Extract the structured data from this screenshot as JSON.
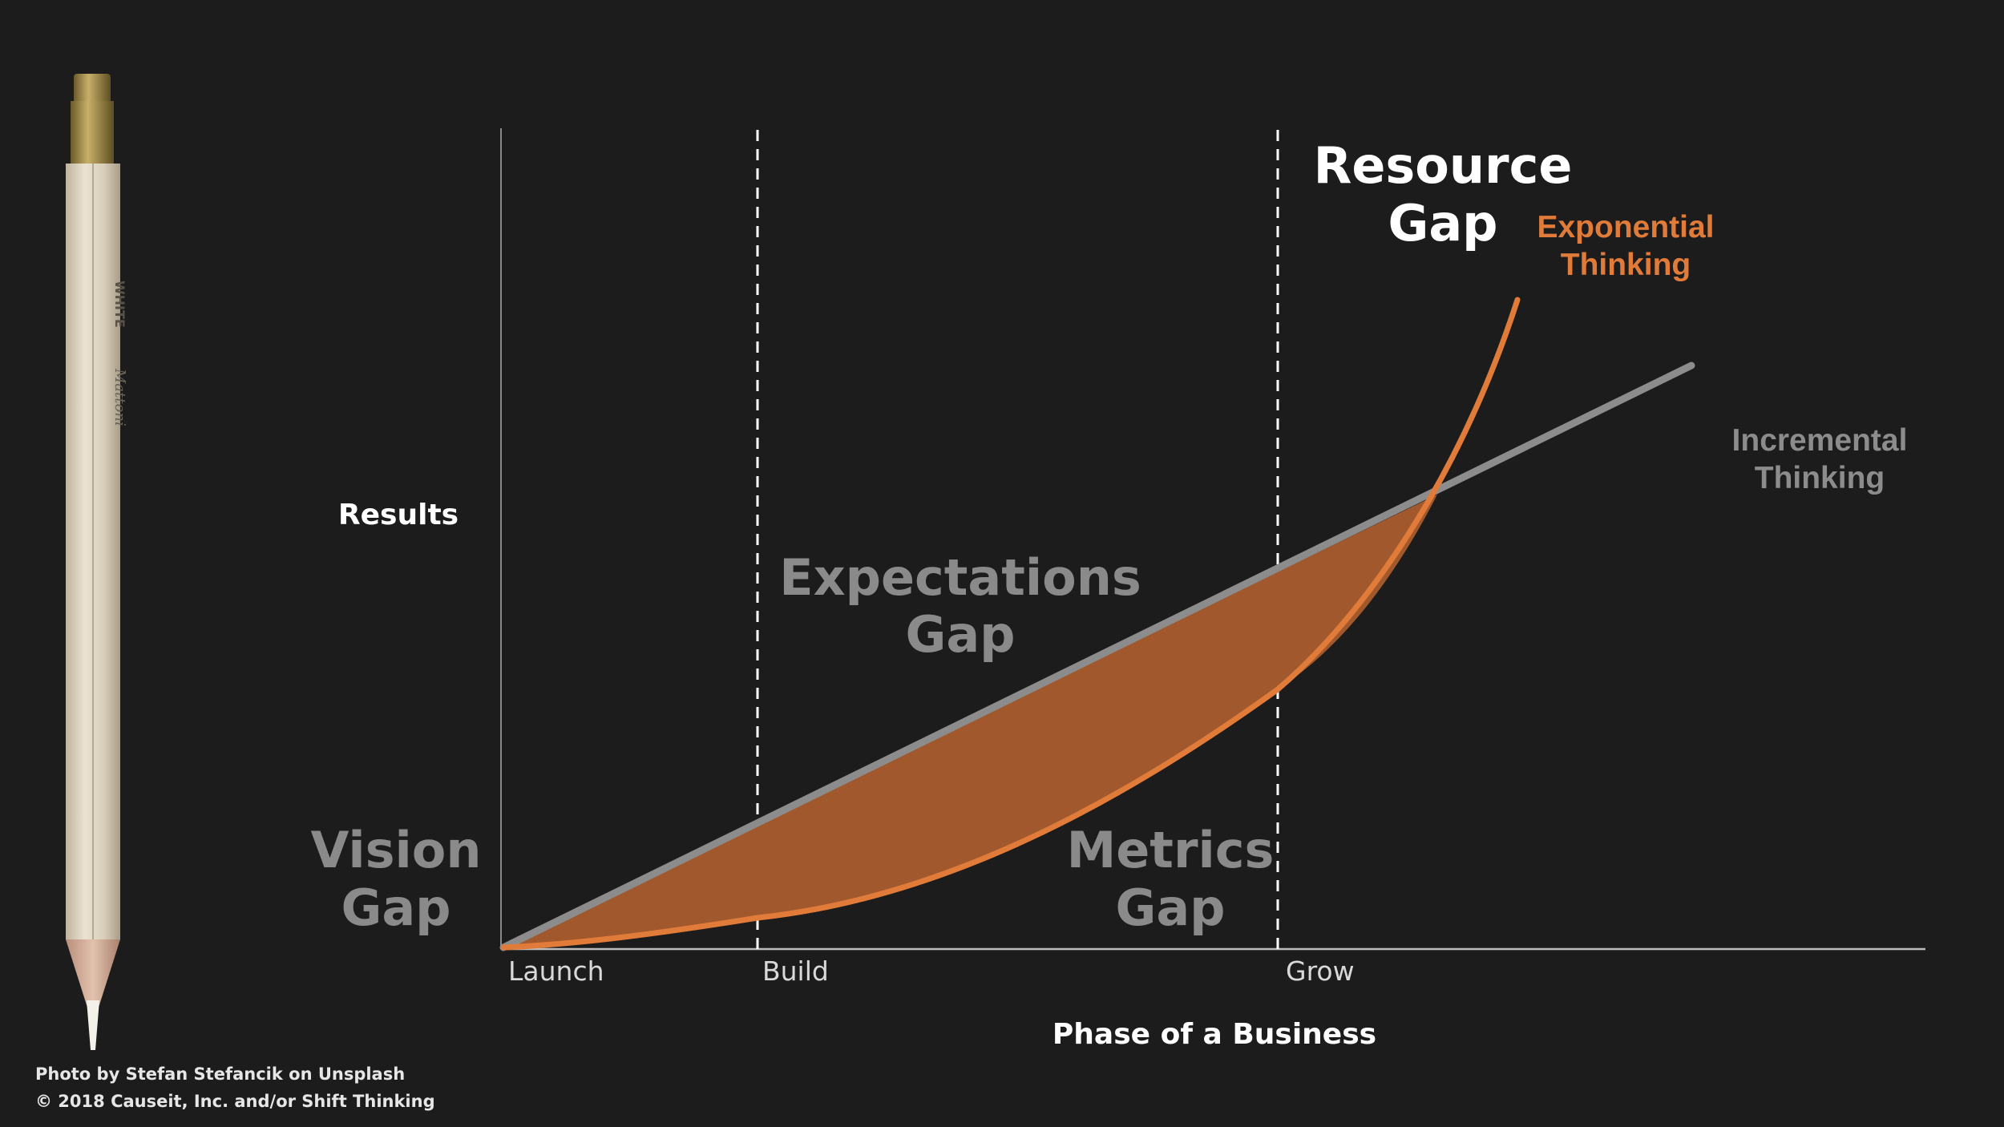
{
  "diagram": {
    "y_axis_label": "Results",
    "x_axis_label": "Phase of a Business",
    "phases": [
      "Launch",
      "Build",
      "Grow"
    ],
    "gaps": {
      "vision": [
        "Vision",
        "Gap"
      ],
      "expectations": [
        "Expectations",
        "Gap"
      ],
      "metrics": [
        "Metrics",
        "Gap"
      ],
      "resource": [
        "Resource",
        "Gap"
      ]
    },
    "curves": {
      "exponential": [
        "Exponential",
        "Thinking"
      ],
      "incremental": [
        "Incremental",
        "Thinking"
      ]
    }
  },
  "pencil": {
    "brand": "Mattoni",
    "color_text": "WHITE"
  },
  "colors": {
    "background": "#1c1c1c",
    "exponential": "#e07b39",
    "fill": "#a0582c",
    "incremental": "#8c8c8c",
    "dim_text": "#8a8a8a",
    "bright_text": "#ffffff"
  },
  "credits": {
    "photo": "Photo by Stefan Stefancik on Unsplash",
    "copyright": "© 2018 Causeit, Inc. and/or Shift Thinking"
  }
}
